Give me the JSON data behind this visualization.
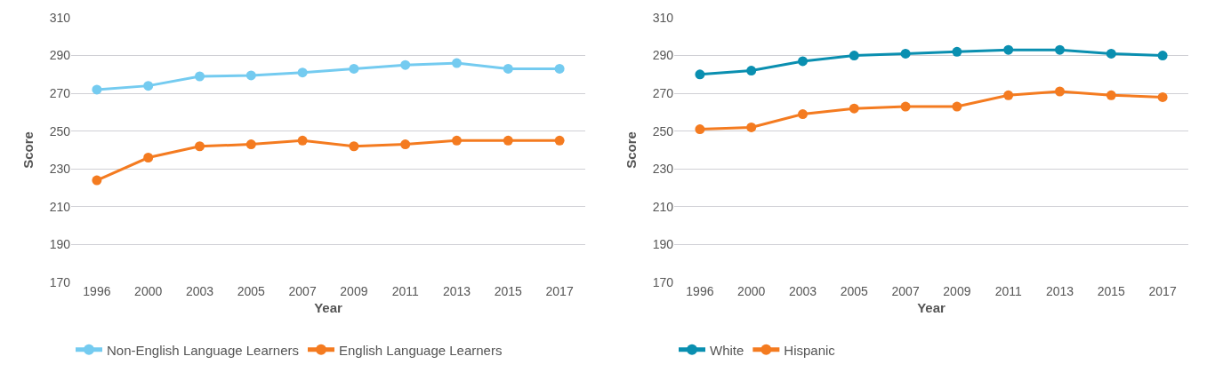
{
  "chart_data": [
    {
      "type": "line",
      "xlabel": "Year",
      "ylabel": "Score",
      "categories": [
        "1996",
        "2000",
        "2003",
        "2005",
        "2007",
        "2009",
        "2011",
        "2013",
        "2015",
        "2017"
      ],
      "series": [
        {
          "name": "Non-English Language Learners",
          "color": "#74cbf0",
          "values": [
            272,
            274,
            279,
            279.5,
            281,
            283,
            285,
            286,
            283,
            283
          ]
        },
        {
          "name": "English Language Learners",
          "color": "#f47b20",
          "values": [
            224,
            236,
            242,
            243,
            245,
            242,
            243,
            245,
            245,
            245
          ]
        }
      ],
      "ylim": [
        170,
        310
      ],
      "yticks": [
        170,
        190,
        210,
        230,
        250,
        270,
        290,
        310
      ],
      "grid": "y",
      "legend": "bottom left",
      "marker": "circle"
    },
    {
      "type": "line",
      "xlabel": "Year",
      "ylabel": "Score",
      "categories": [
        "1996",
        "2000",
        "2003",
        "2005",
        "2007",
        "2009",
        "2011",
        "2013",
        "2015",
        "2017"
      ],
      "series": [
        {
          "name": "White",
          "color": "#0a8fb0",
          "values": [
            280,
            282,
            287,
            290,
            291,
            292,
            293,
            293,
            291,
            290
          ]
        },
        {
          "name": "Hispanic",
          "color": "#f47b20",
          "values": [
            251,
            252,
            259,
            262,
            263,
            263,
            269,
            271,
            269,
            268
          ]
        }
      ],
      "ylim": [
        170,
        310
      ],
      "yticks": [
        170,
        190,
        210,
        230,
        250,
        270,
        290,
        310
      ],
      "grid": "y",
      "legend": "bottom left",
      "marker": "circle"
    }
  ]
}
